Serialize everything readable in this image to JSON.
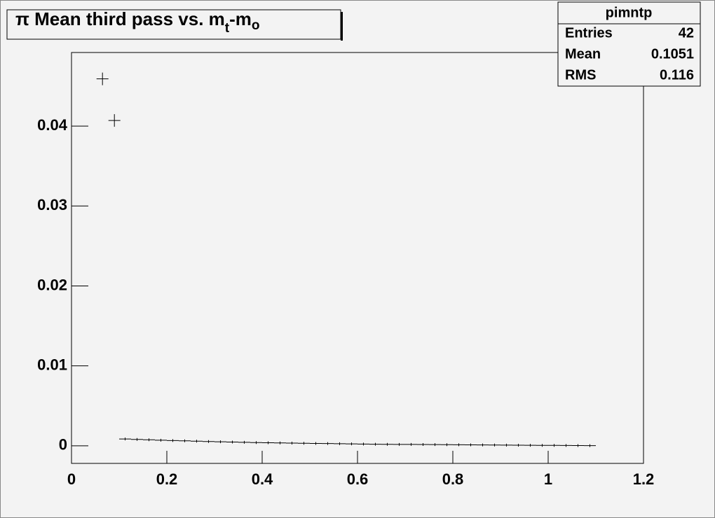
{
  "chart_data": {
    "type": "errorpoints",
    "title": [
      "π Mean third pass vs. m",
      "t",
      "-m",
      "o"
    ],
    "x": [
      0.065,
      0.09,
      0.1125,
      0.1375,
      0.1625,
      0.1875,
      0.2125,
      0.2375,
      0.2625,
      0.2875,
      0.3125,
      0.3375,
      0.3625,
      0.3875,
      0.4125,
      0.4375,
      0.4625,
      0.4875,
      0.5125,
      0.5375,
      0.5625,
      0.5875,
      0.6125,
      0.6375,
      0.6625,
      0.6875,
      0.7125,
      0.7375,
      0.7625,
      0.7875,
      0.8125,
      0.8375,
      0.8625,
      0.8875,
      0.9125,
      0.9375,
      0.9625,
      0.9875,
      1.0125,
      1.0375,
      1.0625,
      1.0875
    ],
    "values": [
      0.0459,
      0.0407,
      0.00085,
      0.0008,
      0.00075,
      0.0007,
      0.00066,
      0.00062,
      0.00058,
      0.00054,
      0.0005,
      0.00047,
      0.00044,
      0.00041,
      0.00038,
      0.00036,
      0.00034,
      0.00032,
      0.0003,
      0.00028,
      0.00026,
      0.00024,
      0.00022,
      0.0002,
      0.00019,
      0.00018,
      0.00017,
      0.00016,
      0.00015,
      0.00014,
      0.00013,
      0.00012,
      0.00011,
      0.0001,
      9e-05,
      8e-05,
      7e-05,
      6e-05,
      5e-05,
      4e-05,
      3e-05,
      2e-05
    ],
    "xerr": 0.0125,
    "color": "#000000",
    "xlim": [
      0,
      1.2
    ],
    "xticks": [
      0,
      0.2,
      0.4,
      0.6,
      0.8,
      1,
      1.2
    ],
    "ylim": [
      -0.0022,
      0.0492
    ],
    "yticks": [
      0,
      0.01,
      0.02,
      0.03,
      0.04
    ],
    "stats_box": {
      "title": "pimntp",
      "rows": [
        [
          "Entries",
          "42"
        ],
        [
          "Mean",
          "0.1051"
        ],
        [
          "RMS",
          "0.116"
        ]
      ]
    }
  }
}
